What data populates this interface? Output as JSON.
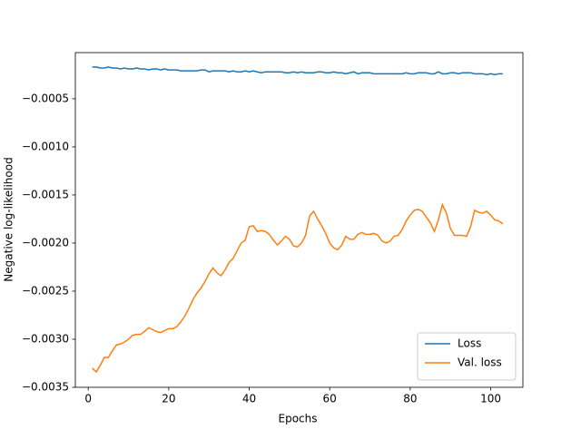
{
  "chart_data": {
    "type": "line",
    "xlabel": "Epochs",
    "ylabel": "Negative log-likelihood",
    "x": [
      1,
      2,
      3,
      4,
      5,
      6,
      7,
      8,
      9,
      10,
      11,
      12,
      13,
      14,
      15,
      16,
      17,
      18,
      19,
      20,
      21,
      22,
      23,
      24,
      25,
      26,
      27,
      28,
      29,
      30,
      31,
      32,
      33,
      34,
      35,
      36,
      37,
      38,
      39,
      40,
      41,
      42,
      43,
      44,
      45,
      46,
      47,
      48,
      49,
      50,
      51,
      52,
      53,
      54,
      55,
      56,
      57,
      58,
      59,
      60,
      61,
      62,
      63,
      64,
      65,
      66,
      67,
      68,
      69,
      70,
      71,
      72,
      73,
      74,
      75,
      76,
      77,
      78,
      79,
      80,
      81,
      82,
      83,
      84,
      85,
      86,
      87,
      88,
      89,
      90,
      91,
      92,
      93,
      94,
      95,
      96,
      97,
      98,
      99,
      100,
      101,
      102,
      103
    ],
    "series": [
      {
        "name": "Loss",
        "color": "#1f77b4",
        "values": [
          -0.00017,
          -0.00017,
          -0.00018,
          -0.00018,
          -0.00017,
          -0.00018,
          -0.00018,
          -0.00019,
          -0.00018,
          -0.00019,
          -0.00019,
          -0.00018,
          -0.00019,
          -0.00019,
          -0.0002,
          -0.00019,
          -0.00019,
          -0.0002,
          -0.00019,
          -0.0002,
          -0.0002,
          -0.0002,
          -0.00021,
          -0.00021,
          -0.00021,
          -0.00021,
          -0.00021,
          -0.0002,
          -0.0002,
          -0.00022,
          -0.00021,
          -0.00021,
          -0.00021,
          -0.00021,
          -0.00022,
          -0.00021,
          -0.00022,
          -0.00022,
          -0.00021,
          -0.00022,
          -0.00021,
          -0.00022,
          -0.00023,
          -0.00022,
          -0.00022,
          -0.00022,
          -0.00022,
          -0.00022,
          -0.00023,
          -0.00023,
          -0.00022,
          -0.00023,
          -0.00022,
          -0.00023,
          -0.00023,
          -0.00023,
          -0.00022,
          -0.00022,
          -0.00023,
          -0.00023,
          -0.00022,
          -0.00023,
          -0.00023,
          -0.00024,
          -0.00023,
          -0.00022,
          -0.00024,
          -0.00023,
          -0.00023,
          -0.00023,
          -0.00024,
          -0.00024,
          -0.00024,
          -0.00024,
          -0.00024,
          -0.00024,
          -0.00024,
          -0.00024,
          -0.00023,
          -0.00024,
          -0.00024,
          -0.00023,
          -0.00023,
          -0.00023,
          -0.00024,
          -0.00024,
          -0.00022,
          -0.00024,
          -0.00024,
          -0.00023,
          -0.00023,
          -0.00024,
          -0.00023,
          -0.00023,
          -0.00023,
          -0.00024,
          -0.00024,
          -0.00024,
          -0.00025,
          -0.00024,
          -0.00025,
          -0.00024,
          -0.00024
        ]
      },
      {
        "name": "Val. loss",
        "color": "#ff7f0e",
        "values": [
          -0.0033,
          -0.00334,
          -0.00327,
          -0.00319,
          -0.00319,
          -0.00312,
          -0.00306,
          -0.00305,
          -0.00303,
          -0.003,
          -0.00296,
          -0.00295,
          -0.00295,
          -0.00292,
          -0.00288,
          -0.0029,
          -0.00292,
          -0.00293,
          -0.00291,
          -0.00289,
          -0.00289,
          -0.00287,
          -0.00282,
          -0.00276,
          -0.00268,
          -0.00259,
          -0.00252,
          -0.00247,
          -0.0024,
          -0.00232,
          -0.00226,
          -0.00231,
          -0.00234,
          -0.00228,
          -0.0022,
          -0.00216,
          -0.00208,
          -0.002,
          -0.00197,
          -0.00183,
          -0.00182,
          -0.00188,
          -0.00187,
          -0.00188,
          -0.00191,
          -0.00197,
          -0.00202,
          -0.00198,
          -0.00193,
          -0.00196,
          -0.00203,
          -0.00204,
          -0.002,
          -0.00192,
          -0.00172,
          -0.00167,
          -0.00175,
          -0.00182,
          -0.0019,
          -0.002,
          -0.00205,
          -0.00207,
          -0.00202,
          -0.00193,
          -0.00196,
          -0.00196,
          -0.00191,
          -0.00189,
          -0.00191,
          -0.00191,
          -0.0019,
          -0.00192,
          -0.00198,
          -0.002,
          -0.00198,
          -0.00193,
          -0.00192,
          -0.00186,
          -0.00177,
          -0.00171,
          -0.00166,
          -0.00165,
          -0.00167,
          -0.00173,
          -0.00179,
          -0.00188,
          -0.00176,
          -0.0016,
          -0.00169,
          -0.00185,
          -0.00192,
          -0.00192,
          -0.00192,
          -0.00193,
          -0.00183,
          -0.00166,
          -0.00168,
          -0.00169,
          -0.00167,
          -0.00171,
          -0.00176,
          -0.00177,
          -0.0018
        ]
      }
    ],
    "xlim": [
      -3.2,
      108
    ],
    "ylim": [
      -0.0035,
      -2e-05
    ],
    "xticks": [
      0,
      20,
      40,
      60,
      80,
      100
    ],
    "yticks": [
      {
        "value": -0.0005,
        "label": "−0.0005"
      },
      {
        "value": -0.001,
        "label": "−0.0010"
      },
      {
        "value": -0.0015,
        "label": "−0.0015"
      },
      {
        "value": -0.002,
        "label": "−0.0020"
      },
      {
        "value": -0.0025,
        "label": "−0.0025"
      },
      {
        "value": -0.003,
        "label": "−0.0030"
      },
      {
        "value": -0.0035,
        "label": "−0.0035"
      }
    ],
    "legend": "lower right"
  }
}
